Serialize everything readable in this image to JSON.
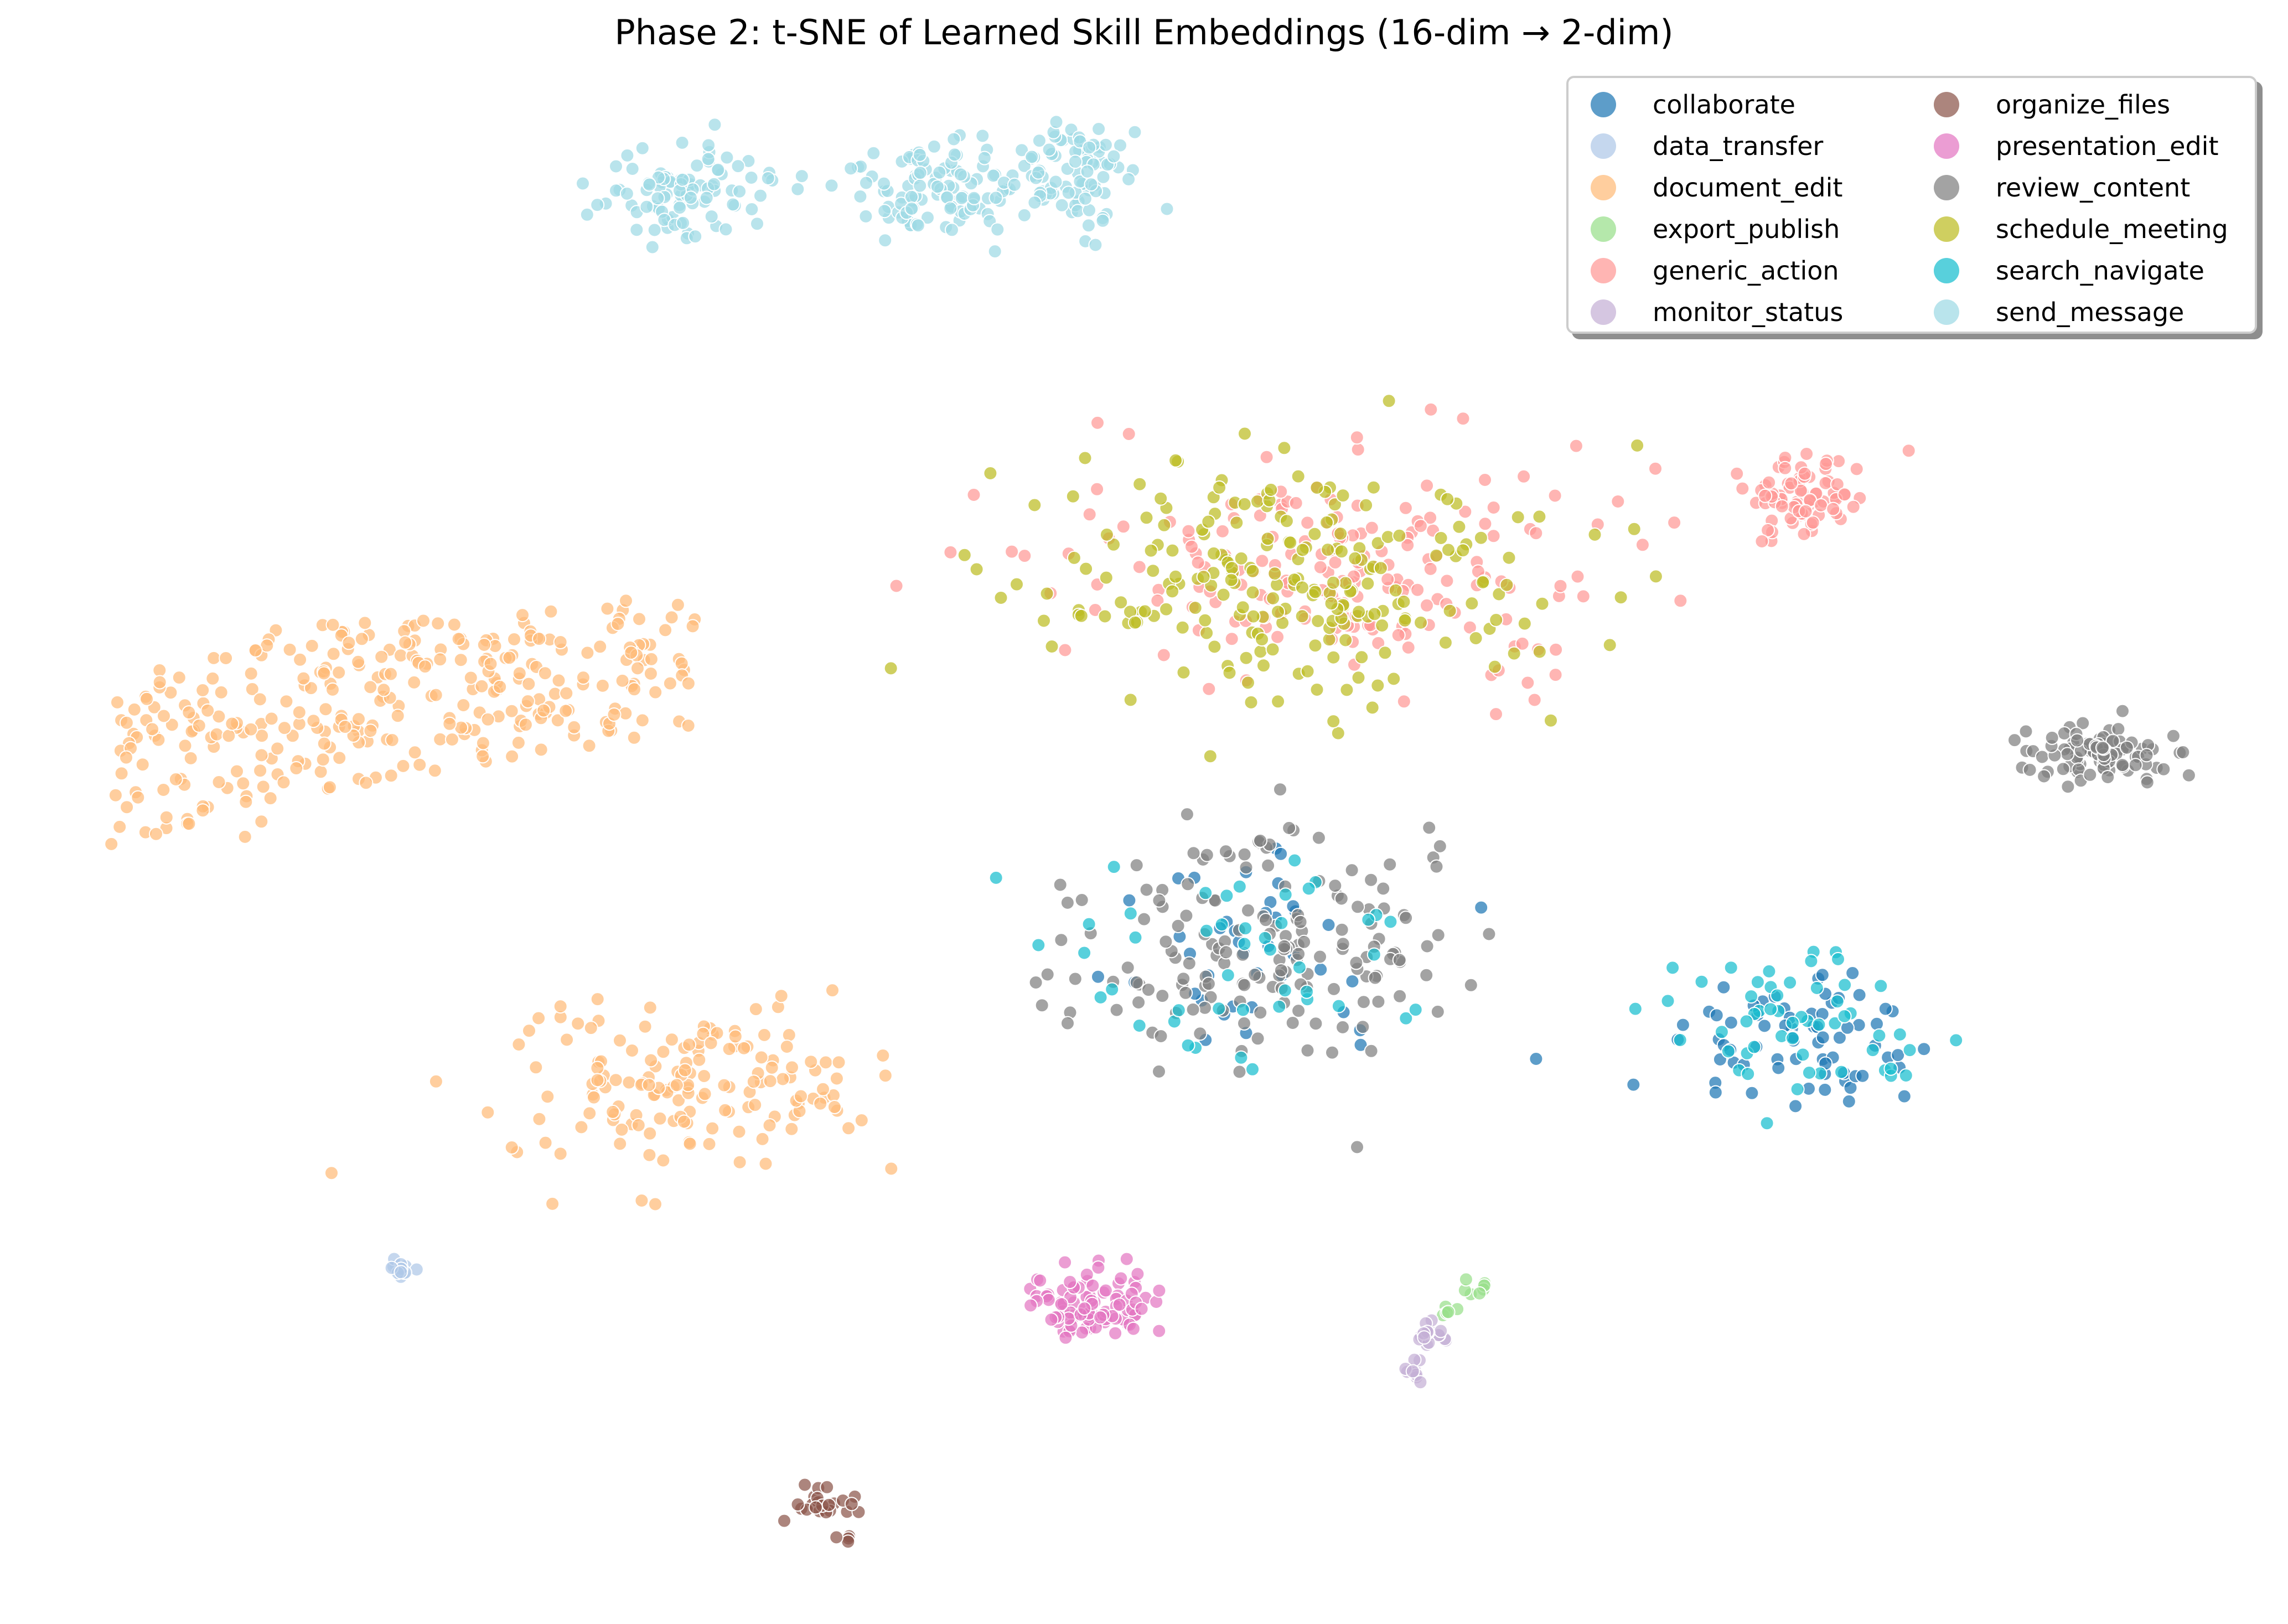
{
  "chart_data": {
    "type": "scatter",
    "title": "Phase 2: t-SNE of Learned Skill Embeddings (16-dim → 2-dim)",
    "xlabel": "",
    "ylabel": "",
    "axes_visible": false,
    "grid": false,
    "legend_position": "upper right",
    "legend_columns": 2,
    "marker": {
      "radius_px": 12,
      "alpha": 0.72,
      "edgecolor": "#ffffff"
    },
    "series": [
      {
        "name": "collaborate",
        "color": "#1f77b4",
        "clusters": [
          {
            "cx": 2260,
            "cy": 1720,
            "sx": 150,
            "sy": 110,
            "n": 40
          },
          {
            "cx": 3260,
            "cy": 1880,
            "sx": 120,
            "sy": 70,
            "n": 70
          }
        ]
      },
      {
        "name": "data_transfer",
        "color": "#aec7e8",
        "clusters": [
          {
            "cx": 725,
            "cy": 2292,
            "sx": 12,
            "sy": 10,
            "n": 14
          }
        ]
      },
      {
        "name": "document_edit",
        "color": "#ffbb78",
        "clusters": [
          {
            "cx": 690,
            "cy": 1290,
            "sx": 330,
            "sy": 130,
            "n": 330,
            "shape": "upper_blob"
          },
          {
            "cx": 1255,
            "cy": 1965,
            "sx": 170,
            "sy": 70,
            "n": 160
          }
        ]
      },
      {
        "name": "export_publish",
        "color": "#98df8a",
        "clusters": [
          {
            "cx": 2666,
            "cy": 2328,
            "sx": 10,
            "sy": 8,
            "n": 7
          },
          {
            "cx": 2615,
            "cy": 2372,
            "sx": 12,
            "sy": 6,
            "n": 5
          }
        ]
      },
      {
        "name": "generic_action",
        "color": "#ff9896",
        "clusters": [
          {
            "cx": 2400,
            "cy": 1020,
            "sx": 260,
            "sy": 110,
            "n": 190
          },
          {
            "cx": 3260,
            "cy": 900,
            "sx": 55,
            "sy": 35,
            "n": 80
          }
        ]
      },
      {
        "name": "monitor_status",
        "color": "#c5b0d5",
        "clusters": [
          {
            "cx": 2590,
            "cy": 2410,
            "sx": 15,
            "sy": 15,
            "n": 18
          },
          {
            "cx": 2555,
            "cy": 2475,
            "sx": 10,
            "sy": 10,
            "n": 10
          }
        ]
      },
      {
        "name": "organize_files",
        "color": "#8c564b",
        "clusters": [
          {
            "cx": 1485,
            "cy": 2720,
            "sx": 38,
            "sy": 12,
            "n": 24
          },
          {
            "cx": 1530,
            "cy": 2778,
            "sx": 10,
            "sy": 5,
            "n": 4
          }
        ]
      },
      {
        "name": "presentation_edit",
        "color": "#e377c2",
        "clusters": [
          {
            "cx": 1970,
            "cy": 2360,
            "sx": 60,
            "sy": 35,
            "n": 95
          }
        ]
      },
      {
        "name": "review_content",
        "color": "#7f7f7f",
        "clusters": [
          {
            "cx": 2300,
            "cy": 1720,
            "sx": 180,
            "sy": 110,
            "n": 170
          },
          {
            "cx": 3800,
            "cy": 1365,
            "sx": 60,
            "sy": 25,
            "n": 95
          }
        ]
      },
      {
        "name": "schedule_meeting",
        "color": "#bcbd22",
        "clusters": [
          {
            "cx": 2330,
            "cy": 1050,
            "sx": 250,
            "sy": 110,
            "n": 230
          }
        ]
      },
      {
        "name": "search_navigate",
        "color": "#17becf",
        "clusters": [
          {
            "cx": 2250,
            "cy": 1730,
            "sx": 170,
            "sy": 110,
            "n": 45
          },
          {
            "cx": 3250,
            "cy": 1850,
            "sx": 120,
            "sy": 70,
            "n": 55
          }
        ]
      },
      {
        "name": "send_message",
        "color": "#9edae5",
        "clusters": [
          {
            "cx": 1250,
            "cy": 345,
            "sx": 80,
            "sy": 40,
            "n": 95
          },
          {
            "cx": 1690,
            "cy": 335,
            "sx": 80,
            "sy": 45,
            "n": 100
          },
          {
            "cx": 1930,
            "cy": 325,
            "sx": 65,
            "sy": 45,
            "n": 95
          }
        ]
      }
    ]
  },
  "legend": {
    "columns": [
      [
        {
          "label": "collaborate",
          "color": "#1f77b4"
        },
        {
          "label": "data_transfer",
          "color": "#aec7e8"
        },
        {
          "label": "document_edit",
          "color": "#ffbb78"
        },
        {
          "label": "export_publish",
          "color": "#98df8a"
        },
        {
          "label": "generic_action",
          "color": "#ff9896"
        },
        {
          "label": "monitor_status",
          "color": "#c5b0d5"
        }
      ],
      [
        {
          "label": "organize_files",
          "color": "#8c564b"
        },
        {
          "label": "presentation_edit",
          "color": "#e377c2"
        },
        {
          "label": "review_content",
          "color": "#7f7f7f"
        },
        {
          "label": "schedule_meeting",
          "color": "#bcbd22"
        },
        {
          "label": "search_navigate",
          "color": "#17becf"
        },
        {
          "label": "send_message",
          "color": "#9edae5"
        }
      ]
    ]
  }
}
